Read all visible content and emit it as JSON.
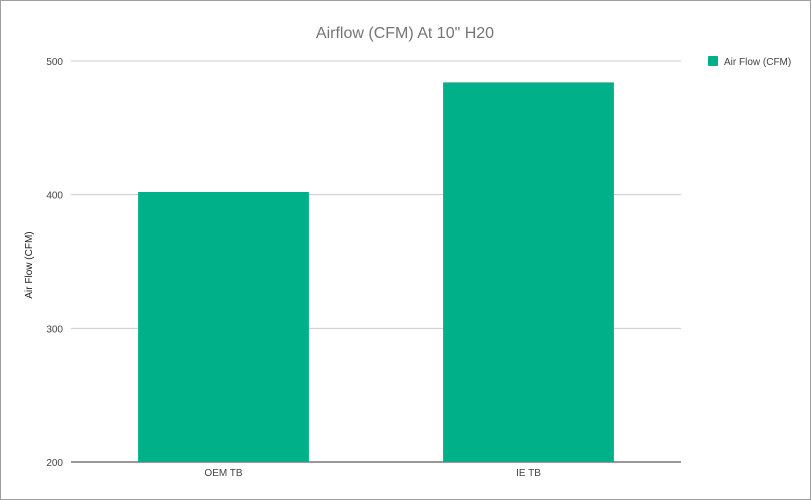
{
  "chart_data": {
    "type": "bar",
    "title": "Airflow (CFM) At  10\" H20",
    "xlabel": "",
    "ylabel": "Air Flow (CFM)",
    "categories": [
      "OEM TB",
      "IE TB"
    ],
    "series": [
      {
        "name": "Air Flow (CFM)",
        "values": [
          402,
          484
        ],
        "color": "#00b088"
      }
    ],
    "ylim": [
      200,
      500
    ],
    "yticks": [
      200,
      300,
      400,
      500
    ],
    "grid": true,
    "legend_position": "right"
  }
}
